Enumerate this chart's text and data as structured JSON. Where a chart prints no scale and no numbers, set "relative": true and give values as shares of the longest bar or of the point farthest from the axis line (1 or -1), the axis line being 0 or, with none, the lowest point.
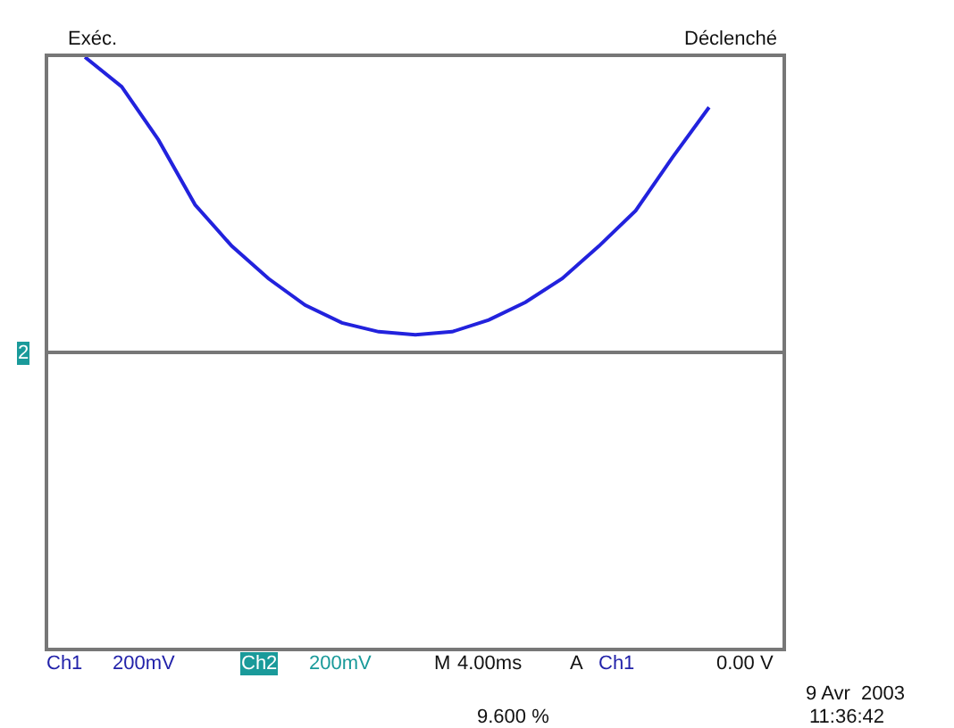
{
  "chart_data": {
    "type": "line",
    "relative": true,
    "marker": "none",
    "line_style": "solid",
    "categories": [
      null,
      null,
      null,
      null,
      null,
      null,
      null,
      null,
      null,
      null,
      null,
      null,
      null,
      null,
      null,
      null,
      null,
      null,
      null,
      null,
      null
    ],
    "series": [
      {
        "color": "#2222dd",
        "values": [
          null,
          1.0,
          0.9,
          0.72,
          0.5,
          0.36,
          0.25,
          0.16,
          0.1,
          0.07,
          0.06,
          0.07,
          0.11,
          0.17,
          0.25,
          0.36,
          0.48,
          0.66,
          0.83,
          null,
          null
        ]
      }
    ],
    "annotations": [
      "Exéc.",
      "Déclenché",
      "Ch1",
      "200mV",
      "Ch2",
      "200mV",
      "M",
      "4.00ms",
      "A",
      "Ch1",
      "0.00 V",
      "9.600 %",
      "9 Avr  2003",
      "11:36:42",
      "2"
    ]
  }
}
